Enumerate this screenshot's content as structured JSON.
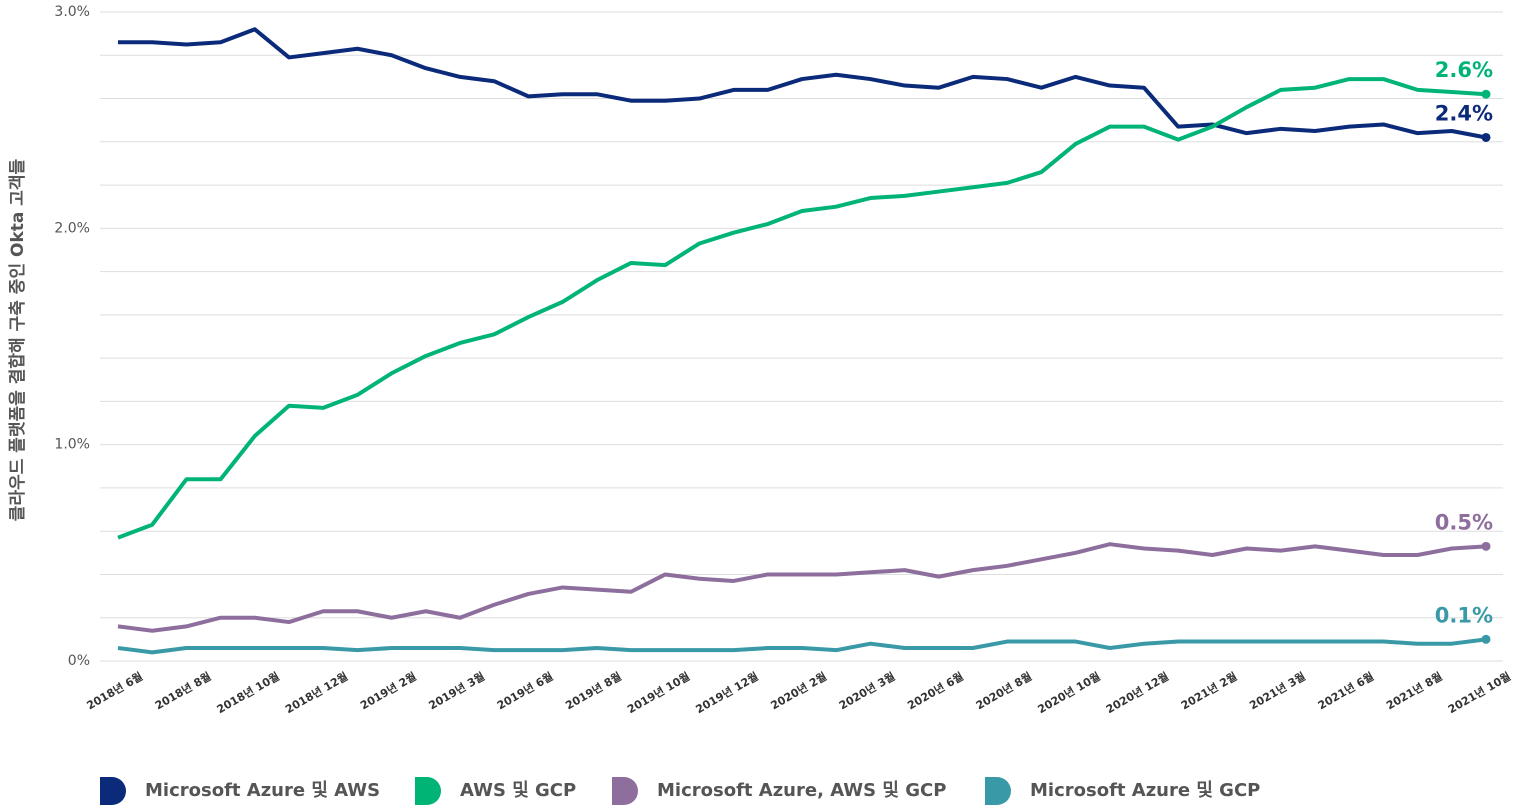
{
  "chart_data": {
    "type": "line",
    "y_axis_label": "클라우드 플랫폼을 결합해 구축 중인 Okta 고객들",
    "categories": [
      "2018년 6월",
      null,
      "2018년 8월",
      null,
      "2018년 10월",
      null,
      "2018년 12월",
      null,
      "2019년 2월",
      null,
      "2019년 3월",
      null,
      "2019년 6월",
      null,
      "2019년 8월",
      null,
      "2019년 10월",
      null,
      "2019년 12월",
      null,
      "2020년 2월",
      null,
      "2020년 3월",
      null,
      "2020년 6월",
      null,
      "2020년 8월",
      null,
      "2020년 10월",
      null,
      "2020년 12월",
      null,
      "2021년 2월",
      null,
      "2021년 3월",
      null,
      "2021년 6월",
      null,
      "2021년 8월",
      null,
      "2021년 10월"
    ],
    "series": [
      {
        "name": "Microsoft Azure 및 AWS",
        "color": "#0b2b7a",
        "end_label": "2.4%",
        "values": [
          2.86,
          2.86,
          2.85,
          2.86,
          2.92,
          2.79,
          2.81,
          2.83,
          2.8,
          2.74,
          2.7,
          2.68,
          2.61,
          2.62,
          2.62,
          2.59,
          2.59,
          2.6,
          2.64,
          2.64,
          2.69,
          2.71,
          2.69,
          2.66,
          2.65,
          2.7,
          2.69,
          2.65,
          2.7,
          2.66,
          2.65,
          2.47,
          2.48,
          2.44,
          2.46,
          2.45,
          2.47,
          2.48,
          2.44,
          2.45,
          2.42
        ]
      },
      {
        "name": "AWS 및 GCP",
        "color": "#00b476",
        "end_label": "2.6%",
        "values": [
          0.57,
          0.63,
          0.84,
          0.84,
          1.04,
          1.18,
          1.17,
          1.23,
          1.33,
          1.41,
          1.47,
          1.51,
          1.59,
          1.66,
          1.76,
          1.84,
          1.83,
          1.93,
          1.98,
          2.02,
          2.08,
          2.1,
          2.14,
          2.15,
          2.17,
          2.19,
          2.21,
          2.26,
          2.39,
          2.47,
          2.47,
          2.41,
          2.47,
          2.56,
          2.64,
          2.65,
          2.69,
          2.69,
          2.64,
          2.63,
          2.62
        ]
      },
      {
        "name": "Microsoft Azure, AWS 및 GCP",
        "color": "#8d6e9d",
        "end_label": "0.5%",
        "values": [
          0.16,
          0.14,
          0.16,
          0.2,
          0.2,
          0.18,
          0.23,
          0.23,
          0.2,
          0.23,
          0.2,
          0.26,
          0.31,
          0.34,
          0.33,
          0.32,
          0.4,
          0.38,
          0.37,
          0.4,
          0.4,
          0.4,
          0.41,
          0.42,
          0.39,
          0.42,
          0.44,
          0.47,
          0.5,
          0.54,
          0.52,
          0.51,
          0.49,
          0.52,
          0.51,
          0.53,
          0.51,
          0.49,
          0.49,
          0.52,
          0.53
        ]
      },
      {
        "name": "Microsoft Azure 및 GCP",
        "color": "#3a99a7",
        "end_label": "0.1%",
        "values": [
          0.06,
          0.04,
          0.06,
          0.06,
          0.06,
          0.06,
          0.06,
          0.05,
          0.06,
          0.06,
          0.06,
          0.05,
          0.05,
          0.05,
          0.06,
          0.05,
          0.05,
          0.05,
          0.05,
          0.06,
          0.06,
          0.05,
          0.08,
          0.06,
          0.06,
          0.06,
          0.09,
          0.09,
          0.09,
          0.06,
          0.08,
          0.09,
          0.09,
          0.09,
          0.09,
          0.09,
          0.09,
          0.09,
          0.08,
          0.08,
          0.1
        ]
      }
    ],
    "ylim": [
      0,
      3
    ],
    "yticks": [
      {
        "value": 0,
        "label": "0%"
      },
      {
        "value": 1,
        "label": "1.0%"
      },
      {
        "value": 2,
        "label": "2.0%"
      },
      {
        "value": 3,
        "label": "3.0%"
      }
    ],
    "minor_yticks": [
      0.2,
      0.4,
      0.6,
      0.8,
      1.2,
      1.4,
      1.6,
      1.8,
      2.2,
      2.4,
      2.6,
      2.8
    ],
    "grid": true,
    "legend": "bottom"
  }
}
